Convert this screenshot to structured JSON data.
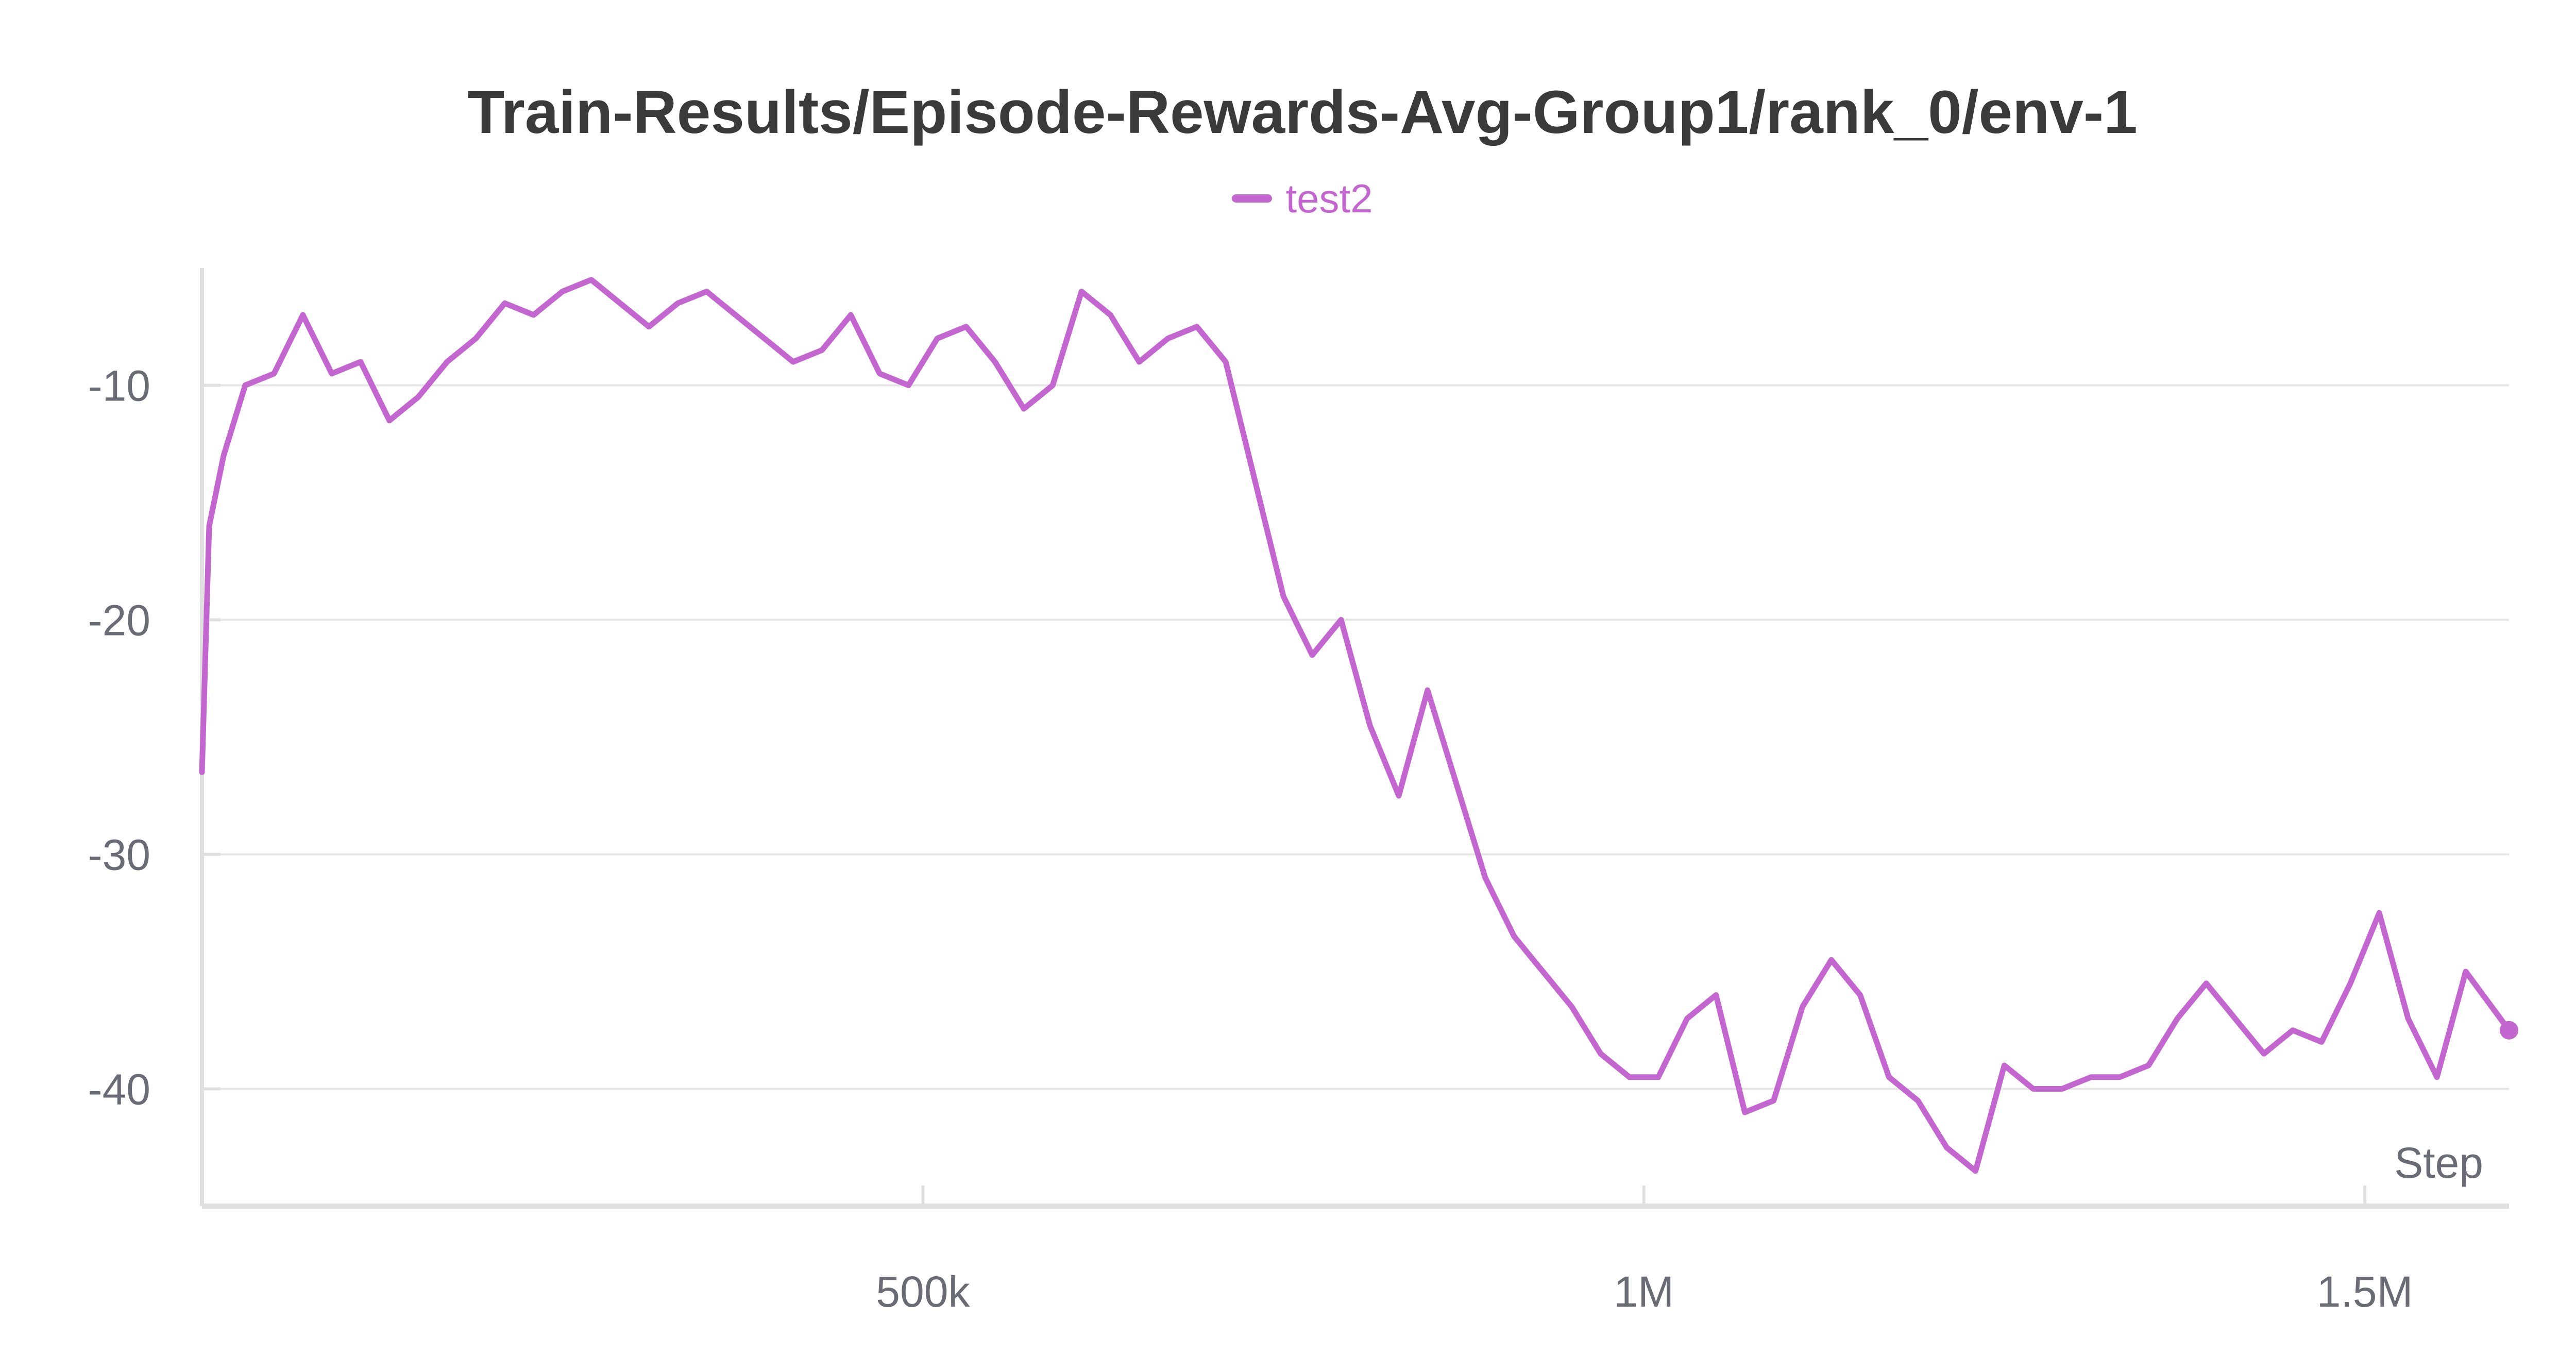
{
  "colors": {
    "series": "#c466d0",
    "grid": "#e6e6e6",
    "axis": "#e0e0e0",
    "tick_text": "#6b6b76",
    "title": "#3a3a3a"
  },
  "chart_data": {
    "type": "line",
    "title": "Train-Results/Episode-Rewards-Avg-Group1/rank_0/env-1",
    "xlabel": "Step",
    "ylabel": "",
    "xlim": [
      0,
      1600000
    ],
    "ylim": [
      -45,
      -5
    ],
    "grid": true,
    "legend_position": "top-center",
    "x_ticks": [
      {
        "value": 500000,
        "label": "500k"
      },
      {
        "value": 1000000,
        "label": "1M"
      },
      {
        "value": 1500000,
        "label": "1.5M"
      }
    ],
    "y_ticks": [
      {
        "value": -10,
        "label": "-10"
      },
      {
        "value": -20,
        "label": "-20"
      },
      {
        "value": -30,
        "label": "-30"
      },
      {
        "value": -40,
        "label": "-40"
      }
    ],
    "series": [
      {
        "name": "test2",
        "x": [
          0,
          5000,
          15000,
          30000,
          50000,
          70000,
          90000,
          110000,
          130000,
          150000,
          170000,
          190000,
          210000,
          230000,
          250000,
          270000,
          290000,
          310000,
          330000,
          350000,
          370000,
          390000,
          410000,
          430000,
          450000,
          470000,
          490000,
          510000,
          530000,
          550000,
          570000,
          590000,
          610000,
          630000,
          650000,
          670000,
          690000,
          710000,
          730000,
          750000,
          770000,
          790000,
          810000,
          830000,
          850000,
          870000,
          890000,
          910000,
          930000,
          950000,
          970000,
          990000,
          1010000,
          1030000,
          1050000,
          1070000,
          1090000,
          1110000,
          1130000,
          1150000,
          1170000,
          1190000,
          1210000,
          1230000,
          1250000,
          1270000,
          1290000,
          1310000,
          1330000,
          1350000,
          1370000,
          1390000,
          1410000,
          1430000,
          1450000,
          1470000,
          1490000,
          1510000,
          1530000,
          1550000,
          1570000,
          1600000
        ],
        "y": [
          -26.5,
          -16,
          -13,
          -10,
          -9.5,
          -7,
          -9.5,
          -9,
          -11.5,
          -10.5,
          -9,
          -8,
          -6.5,
          -7,
          -6,
          -5.5,
          -6.5,
          -7.5,
          -6.5,
          -6,
          -7,
          -8,
          -9,
          -8.5,
          -7,
          -9.5,
          -10,
          -8,
          -7.5,
          -9,
          -11,
          -10,
          -6,
          -7,
          -9,
          -8,
          -7.5,
          -9,
          -14,
          -19,
          -21.5,
          -20,
          -24.5,
          -27.5,
          -23,
          -27,
          -31,
          -33.5,
          -35,
          -36.5,
          -38.5,
          -39.5,
          -39.5,
          -37,
          -36,
          -41,
          -40.5,
          -36.5,
          -34.5,
          -36,
          -39.5,
          -40.5,
          -42.5,
          -43.5,
          -39,
          -40,
          -40,
          -39.5,
          -39.5,
          -39,
          -37,
          -35.5,
          -37,
          -38.5,
          -37.5,
          -38,
          -35.5,
          -32.5,
          -37,
          -39.5,
          -35,
          -37.5
        ]
      }
    ]
  }
}
